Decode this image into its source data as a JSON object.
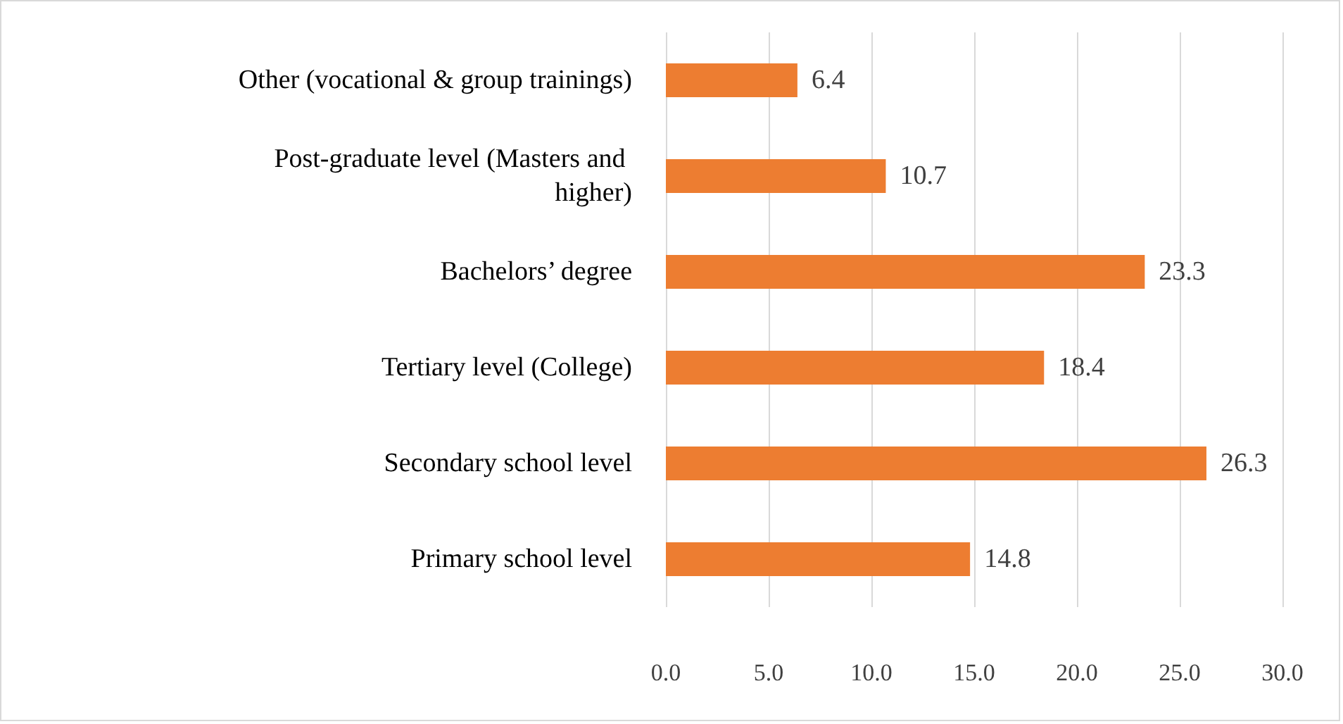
{
  "chart_data": {
    "type": "bar",
    "orientation": "horizontal",
    "categories": [
      "Other (vocational & group trainings)",
      "Post-graduate level (Masters and higher)",
      "Bachelors’ degree",
      "Tertiary level (College)",
      "Secondary school level",
      "Primary school level"
    ],
    "values": [
      6.4,
      10.7,
      23.3,
      18.4,
      26.3,
      14.8
    ],
    "color": "#ed7d31",
    "xlim": [
      0,
      30
    ],
    "xticks": [
      {
        "value": 0,
        "label": "0.0"
      },
      {
        "value": 5,
        "label": "5.0"
      },
      {
        "value": 10,
        "label": "10.0"
      },
      {
        "value": 15,
        "label": "15.0"
      },
      {
        "value": 20,
        "label": "20.0"
      },
      {
        "value": 25,
        "label": "25.0"
      },
      {
        "value": 30,
        "label": "30.0"
      }
    ],
    "grid": "x",
    "data_labels": true
  }
}
